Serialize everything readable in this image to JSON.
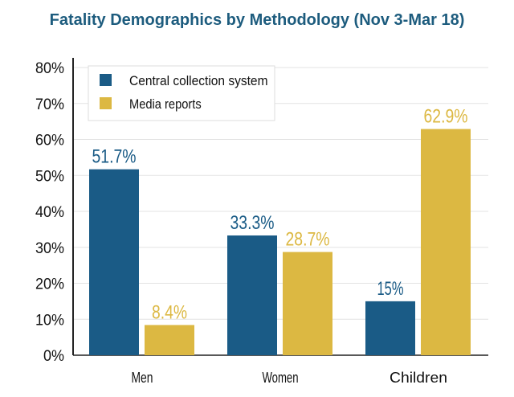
{
  "chart_data": {
    "type": "bar",
    "title": "Fatality Demographics by Methodology (Nov 3-Mar 18)",
    "categories": [
      "Men",
      "Women",
      "Children"
    ],
    "series": [
      {
        "name": "Central collection system",
        "values": [
          51.7,
          33.3,
          15
        ],
        "labels": [
          "51.7%",
          "33.3%",
          "15%"
        ],
        "color": "#1a5b86"
      },
      {
        "name": "Media reports",
        "values": [
          8.4,
          28.7,
          62.9
        ],
        "labels": [
          "8.4%",
          "28.7%",
          "62.9%"
        ],
        "color": "#dcb842"
      }
    ],
    "ylim": [
      0,
      80
    ],
    "yticks": [
      "0%",
      "10%",
      "20%",
      "30%",
      "40%",
      "50%",
      "60%",
      "70%",
      "80%"
    ],
    "grid": true,
    "legend_placement": "top-left"
  }
}
